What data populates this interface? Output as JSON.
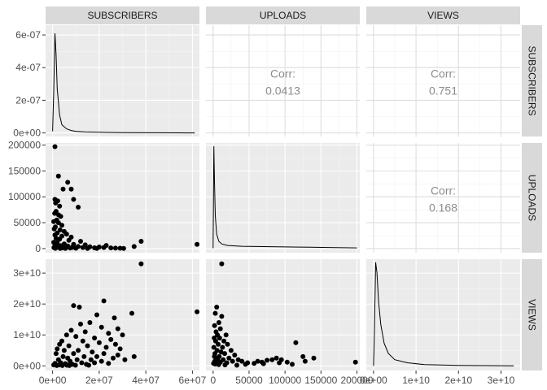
{
  "chart_data": {
    "type": "scatter-matrix",
    "variables": [
      "SUBSCRIBERS",
      "UPLOADS",
      "VIEWS"
    ],
    "x_axes": [
      {
        "ticks": [
          0,
          20000000,
          40000000,
          60000000
        ],
        "tick_labels": [
          "0e+00",
          "2e+07",
          "4e+07",
          "6e+07"
        ],
        "lim": [
          -3000000,
          63000000
        ]
      },
      {
        "ticks": [
          0,
          50000,
          100000,
          150000,
          200000
        ],
        "tick_labels": [
          "0",
          "50000",
          "100000",
          "150000",
          "200000"
        ],
        "lim": [
          -10000,
          204000
        ]
      },
      {
        "ticks": [
          0,
          10000000000,
          20000000000,
          30000000000
        ],
        "tick_labels": [
          "0e+00",
          "1e+10",
          "2e+10",
          "3e+10"
        ],
        "lim": [
          -1700000000,
          34500000000
        ]
      }
    ],
    "y_axes": [
      {
        "ticks": [
          0,
          2e-07,
          4e-07,
          6e-07
        ],
        "tick_labels": [
          "0e+00",
          "2e-07",
          "4e-07",
          "6e-07"
        ],
        "lim": [
          -2.2e-08,
          6.6e-07
        ]
      },
      {
        "ticks": [
          0,
          50000,
          100000,
          150000,
          200000
        ],
        "tick_labels": [
          "0",
          "50000",
          "100000",
          "150000",
          "200000"
        ],
        "lim": [
          -8000,
          204000
        ]
      },
      {
        "ticks": [
          0,
          10000000000,
          20000000000,
          30000000000
        ],
        "tick_labels": [
          "0e+00",
          "1e+10",
          "2e+10",
          "3e+10"
        ],
        "lim": [
          -1500000000,
          34500000000
        ]
      }
    ],
    "densities": [
      {
        "var": "SUBSCRIBERS",
        "x": [
          0,
          500000,
          1000000,
          1500000,
          2000000,
          3000000,
          4000000,
          6000000,
          8000000,
          10000000,
          14000000,
          20000000,
          30000000,
          45000000,
          61000000
        ],
        "y": [
          1e-08,
          2.5e-07,
          6.1e-07,
          4.8e-07,
          2.7e-07,
          1.1e-07,
          5e-08,
          2.5e-08,
          1.5e-08,
          1e-08,
          6e-09,
          4e-09,
          2e-09,
          1e-09,
          0
        ]
      },
      {
        "var": "UPLOADS",
        "x": [
          0,
          1000,
          2000,
          3000,
          5000,
          8000,
          12000,
          20000,
          40000,
          80000,
          120000,
          160000,
          200000
        ],
        "y": [
          0.003,
          1.0,
          0.62,
          0.32,
          0.14,
          0.07,
          0.045,
          0.03,
          0.022,
          0.018,
          0.014,
          0.01,
          0.006
        ]
      },
      {
        "var": "VIEWS",
        "x": [
          0,
          200000000,
          500000000,
          800000000,
          1200000000,
          1700000000,
          2500000000,
          3500000000,
          5000000000,
          8000000000,
          12000000000,
          20000000000,
          33000000000
        ],
        "y": [
          0,
          0.3,
          1.0,
          0.9,
          0.62,
          0.4,
          0.22,
          0.12,
          0.06,
          0.03,
          0.012,
          0.004,
          0
        ]
      }
    ],
    "correlations": [
      {
        "row": "SUBSCRIBERS",
        "col": "UPLOADS",
        "label": "Corr:",
        "value": "0.0413"
      },
      {
        "row": "SUBSCRIBERS",
        "col": "VIEWS",
        "label": "Corr:",
        "value": "0.751"
      },
      {
        "row": "UPLOADS",
        "col": "VIEWS",
        "label": "Corr:",
        "value": "0.168"
      }
    ],
    "scatter": [
      {
        "x_var": "SUBSCRIBERS",
        "y_var": "UPLOADS",
        "points": [
          [
            1000000,
            197000
          ],
          [
            2500000,
            140000
          ],
          [
            6500000,
            128000
          ],
          [
            8000000,
            115000
          ],
          [
            4500000,
            115000
          ],
          [
            1000000,
            95000
          ],
          [
            2200000,
            92000
          ],
          [
            1300000,
            88000
          ],
          [
            3000000,
            82000
          ],
          [
            9000000,
            95000
          ],
          [
            11000000,
            80000
          ],
          [
            1500000,
            72000
          ],
          [
            900000,
            68000
          ],
          [
            2600000,
            65000
          ],
          [
            3500000,
            62000
          ],
          [
            1800000,
            55000
          ],
          [
            500000,
            52000
          ],
          [
            2500000,
            50000
          ],
          [
            4000000,
            45000
          ],
          [
            1200000,
            42000
          ],
          [
            700000,
            38000
          ],
          [
            3200000,
            36000
          ],
          [
            5000000,
            33000
          ],
          [
            2000000,
            30000
          ],
          [
            6000000,
            28000
          ],
          [
            1000000,
            26000
          ],
          [
            4000000,
            24000
          ],
          [
            8000000,
            22000
          ],
          [
            1500000,
            20000
          ],
          [
            3000000,
            18000
          ],
          [
            7000000,
            16000
          ],
          [
            12000000,
            14000
          ],
          [
            500000,
            12000
          ],
          [
            2000000,
            11000
          ],
          [
            5000000,
            9000
          ],
          [
            9000000,
            8000
          ],
          [
            14000000,
            7000
          ],
          [
            1000000,
            6000
          ],
          [
            3500000,
            5500
          ],
          [
            6500000,
            5000
          ],
          [
            11000000,
            4000
          ],
          [
            16000000,
            3500
          ],
          [
            20000000,
            3000
          ],
          [
            2500000,
            2500
          ],
          [
            8500000,
            2200
          ],
          [
            13000000,
            2000
          ],
          [
            18000000,
            1500
          ],
          [
            23000000,
            6000
          ],
          [
            22000000,
            2000
          ],
          [
            25000000,
            1200
          ],
          [
            27000000,
            800
          ],
          [
            29000000,
            600
          ],
          [
            30500000,
            400
          ],
          [
            35000000,
            4000
          ],
          [
            38000000,
            14000
          ],
          [
            62000000,
            8000
          ],
          [
            600000,
            1800
          ],
          [
            4200000,
            1400
          ],
          [
            7500000,
            900
          ],
          [
            10000000,
            600
          ],
          [
            15000000,
            400
          ],
          [
            19000000,
            300
          ],
          [
            1200000,
            500
          ],
          [
            3300000,
            300
          ],
          [
            5500000,
            200
          ]
        ]
      },
      {
        "x_var": "SUBSCRIBERS",
        "y_var": "VIEWS",
        "points": [
          [
            38000000,
            33000000000
          ],
          [
            22000000,
            21000000000
          ],
          [
            62000000,
            17500000000
          ],
          [
            34000000,
            17000000000
          ],
          [
            9000000,
            19500000000
          ],
          [
            11500000,
            19000000000
          ],
          [
            19000000,
            16500000000
          ],
          [
            26500000,
            15500000000
          ],
          [
            16000000,
            14000000000
          ],
          [
            12000000,
            13500000000
          ],
          [
            21000000,
            12500000000
          ],
          [
            28000000,
            12000000000
          ],
          [
            8000000,
            11500000000
          ],
          [
            14000000,
            11000000000
          ],
          [
            24000000,
            10500000000
          ],
          [
            30000000,
            10000000000
          ],
          [
            6000000,
            10000000000
          ],
          [
            10000000,
            9500000000
          ],
          [
            18000000,
            9000000000
          ],
          [
            25000000,
            8500000000
          ],
          [
            4000000,
            8000000000
          ],
          [
            13000000,
            8000000000
          ],
          [
            20000000,
            7500000000
          ],
          [
            27000000,
            7000000000
          ],
          [
            3000000,
            7000000000
          ],
          [
            7000000,
            6500000000
          ],
          [
            15000000,
            6500000000
          ],
          [
            23000000,
            6000000000
          ],
          [
            29000000,
            5500000000
          ],
          [
            2000000,
            5500000000
          ],
          [
            5000000,
            5000000000
          ],
          [
            11000000,
            5000000000
          ],
          [
            17000000,
            4500000000
          ],
          [
            22000000,
            4000000000
          ],
          [
            28000000,
            3500000000
          ],
          [
            35000000,
            3000000000
          ],
          [
            1500000,
            4000000000
          ],
          [
            9000000,
            4000000000
          ],
          [
            19000000,
            3000000000
          ],
          [
            26000000,
            2500000000
          ],
          [
            31000000,
            2000000000
          ],
          [
            4500000,
            3000000000
          ],
          [
            13500000,
            3000000000
          ],
          [
            6500000,
            2500000000
          ],
          [
            2500000,
            2000000000
          ],
          [
            10500000,
            2000000000
          ],
          [
            16500000,
            2000000000
          ],
          [
            21000000,
            1500000000
          ],
          [
            7500000,
            1500000000
          ],
          [
            3500000,
            1000000000
          ],
          [
            12500000,
            1000000000
          ],
          [
            18000000,
            1000000000
          ],
          [
            24000000,
            800000000
          ],
          [
            1000000,
            800000000
          ],
          [
            5500000,
            700000000
          ],
          [
            8500000,
            500000000
          ],
          [
            14500000,
            500000000
          ],
          [
            500000,
            300000000
          ],
          [
            2800000,
            300000000
          ],
          [
            6200000,
            200000000
          ],
          [
            9800000,
            200000000
          ],
          [
            15500000,
            200000000
          ],
          [
            1800000,
            100000000
          ],
          [
            4200000,
            100000000
          ],
          [
            7200000,
            100000000
          ]
        ]
      },
      {
        "x_var": "UPLOADS",
        "y_var": "VIEWS",
        "points": [
          [
            12000,
            33000000000
          ],
          [
            12000,
            16000000000
          ],
          [
            5000,
            19000000000
          ],
          [
            3000,
            17000000000
          ],
          [
            8000,
            14000000000
          ],
          [
            2000,
            13000000000
          ],
          [
            10000,
            12000000000
          ],
          [
            4000,
            11000000000
          ],
          [
            18000,
            10000000000
          ],
          [
            6000,
            10000000000
          ],
          [
            1500,
            9000000000
          ],
          [
            9000,
            9000000000
          ],
          [
            15000,
            8000000000
          ],
          [
            3500,
            8000000000
          ],
          [
            20000,
            7000000000
          ],
          [
            7000,
            7000000000
          ],
          [
            1000,
            6000000000
          ],
          [
            13000,
            6000000000
          ],
          [
            25000,
            5000000000
          ],
          [
            5500,
            5000000000
          ],
          [
            11000,
            4500000000
          ],
          [
            2500,
            4000000000
          ],
          [
            16000,
            4000000000
          ],
          [
            30000,
            3500000000
          ],
          [
            8500,
            3000000000
          ],
          [
            1800,
            3000000000
          ],
          [
            22000,
            2500000000
          ],
          [
            4500,
            2500000000
          ],
          [
            35000,
            2000000000
          ],
          [
            14000,
            2000000000
          ],
          [
            6500,
            1800000000
          ],
          [
            27000,
            1500000000
          ],
          [
            2200,
            1500000000
          ],
          [
            40000,
            1500000000
          ],
          [
            10000,
            1200000000
          ],
          [
            48000,
            1000000000
          ],
          [
            19000,
            1000000000
          ],
          [
            3800,
            900000000
          ],
          [
            57000,
            800000000
          ],
          [
            62000,
            1500000000
          ],
          [
            68000,
            1200000000
          ],
          [
            75000,
            1800000000
          ],
          [
            82000,
            2000000000
          ],
          [
            88000,
            2500000000
          ],
          [
            95000,
            2000000000
          ],
          [
            103000,
            1200000000
          ],
          [
            110000,
            500000000
          ],
          [
            115000,
            7500000000
          ],
          [
            125000,
            3000000000
          ],
          [
            140000,
            2500000000
          ],
          [
            198000,
            1200000000
          ],
          [
            128000,
            1500000000
          ],
          [
            92000,
            1000000000
          ],
          [
            70000,
            700000000
          ],
          [
            45000,
            500000000
          ],
          [
            600,
            800000000
          ],
          [
            2800,
            600000000
          ],
          [
            7800,
            400000000
          ],
          [
            16500,
            300000000
          ],
          [
            33000,
            200000000
          ]
        ]
      }
    ]
  }
}
